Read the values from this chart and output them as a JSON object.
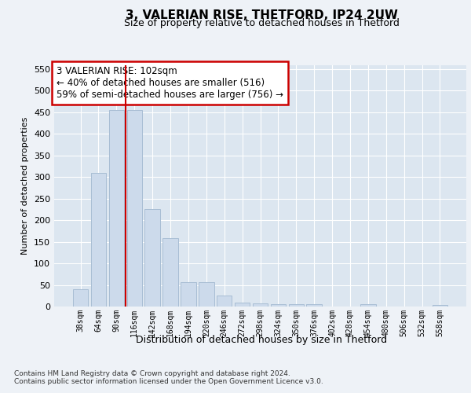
{
  "title1": "3, VALERIAN RISE, THETFORD, IP24 2UW",
  "title2": "Size of property relative to detached houses in Thetford",
  "xlabel": "Distribution of detached houses by size in Thetford",
  "ylabel": "Number of detached properties",
  "categories": [
    "38sqm",
    "64sqm",
    "90sqm",
    "116sqm",
    "142sqm",
    "168sqm",
    "194sqm",
    "220sqm",
    "246sqm",
    "272sqm",
    "298sqm",
    "324sqm",
    "350sqm",
    "376sqm",
    "402sqm",
    "428sqm",
    "454sqm",
    "480sqm",
    "506sqm",
    "532sqm",
    "558sqm"
  ],
  "values": [
    40,
    310,
    455,
    455,
    225,
    158,
    57,
    57,
    25,
    10,
    8,
    5,
    5,
    5,
    0,
    0,
    5,
    0,
    0,
    0,
    4
  ],
  "bar_color": "#ccdaeb",
  "bar_edge_color": "#a8bdd4",
  "property_line_x": 2.5,
  "annotation_text": "3 VALERIAN RISE: 102sqm\n← 40% of detached houses are smaller (516)\n59% of semi-detached houses are larger (756) →",
  "annotation_box_color": "#ffffff",
  "annotation_box_edge": "#cc0000",
  "vline_color": "#cc0000",
  "ylim": [
    0,
    560
  ],
  "yticks": [
    0,
    50,
    100,
    150,
    200,
    250,
    300,
    350,
    400,
    450,
    500,
    550
  ],
  "footer1": "Contains HM Land Registry data © Crown copyright and database right 2024.",
  "footer2": "Contains public sector information licensed under the Open Government Licence v3.0.",
  "bg_color": "#eef2f7",
  "plot_bg_color": "#dce6f0"
}
